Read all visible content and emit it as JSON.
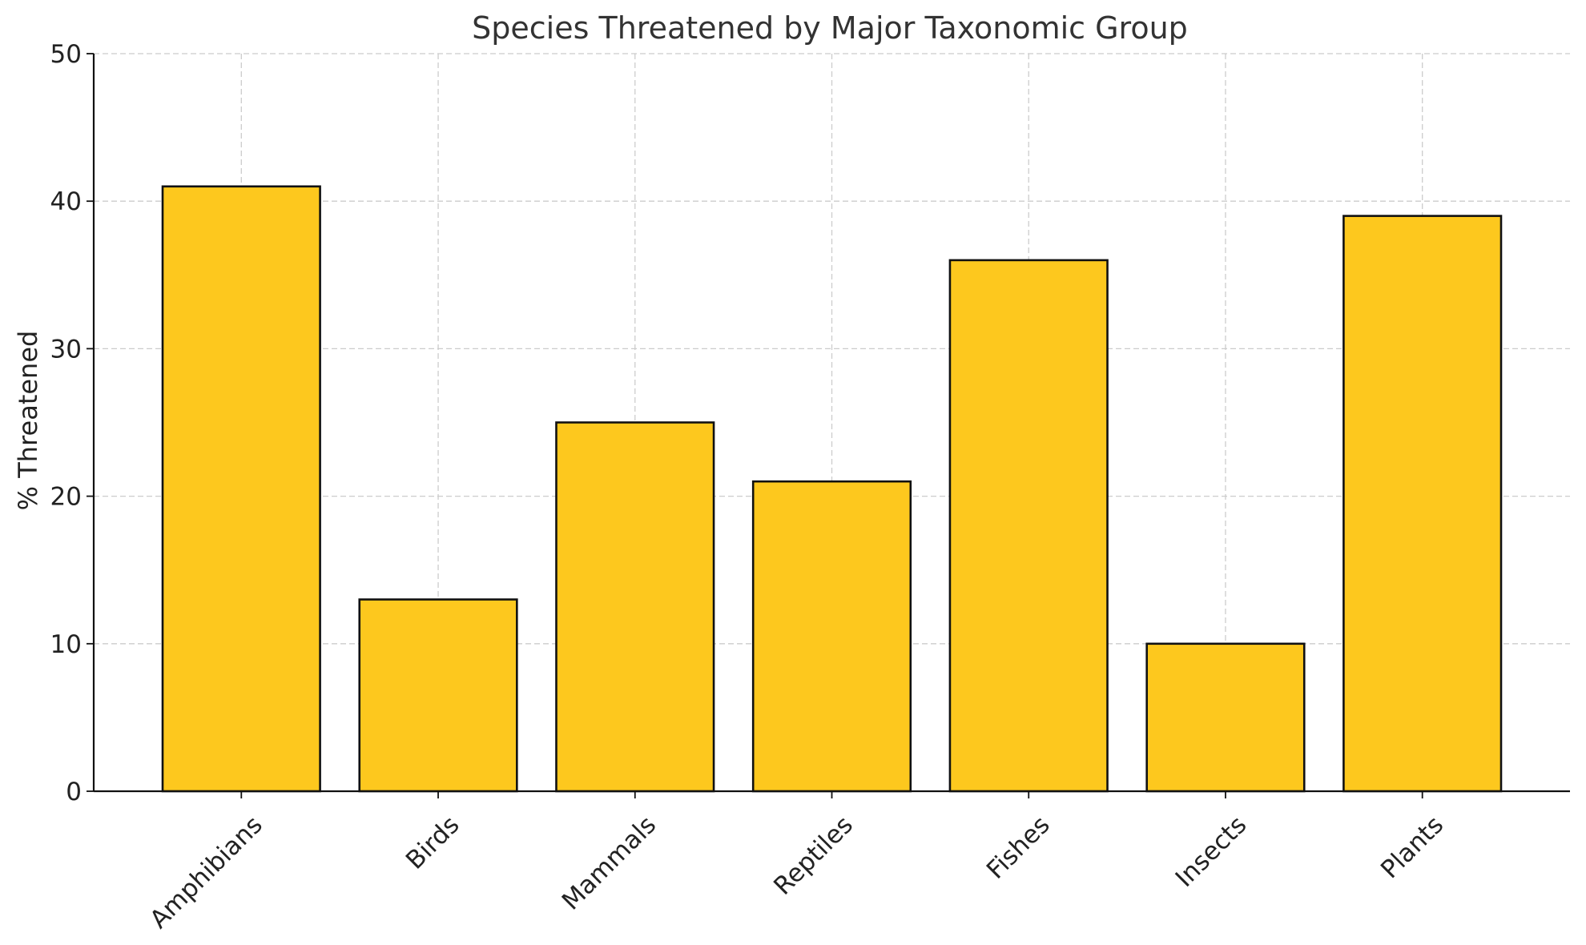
{
  "chart_data": {
    "type": "bar",
    "title": "Species Threatened by Major Taxonomic Group",
    "xlabel": "",
    "ylabel": "% Threatened",
    "categories": [
      "Amphibians",
      "Birds",
      "Mammals",
      "Reptiles",
      "Fishes",
      "Insects",
      "Plants"
    ],
    "values": [
      41,
      13,
      25,
      21,
      36,
      10,
      39
    ],
    "ylim": [
      0,
      50
    ],
    "yticks": [
      0,
      10,
      20,
      30,
      40,
      50
    ],
    "grid": true,
    "bar_color": "#FDC81E",
    "edge_color": "#111111"
  }
}
